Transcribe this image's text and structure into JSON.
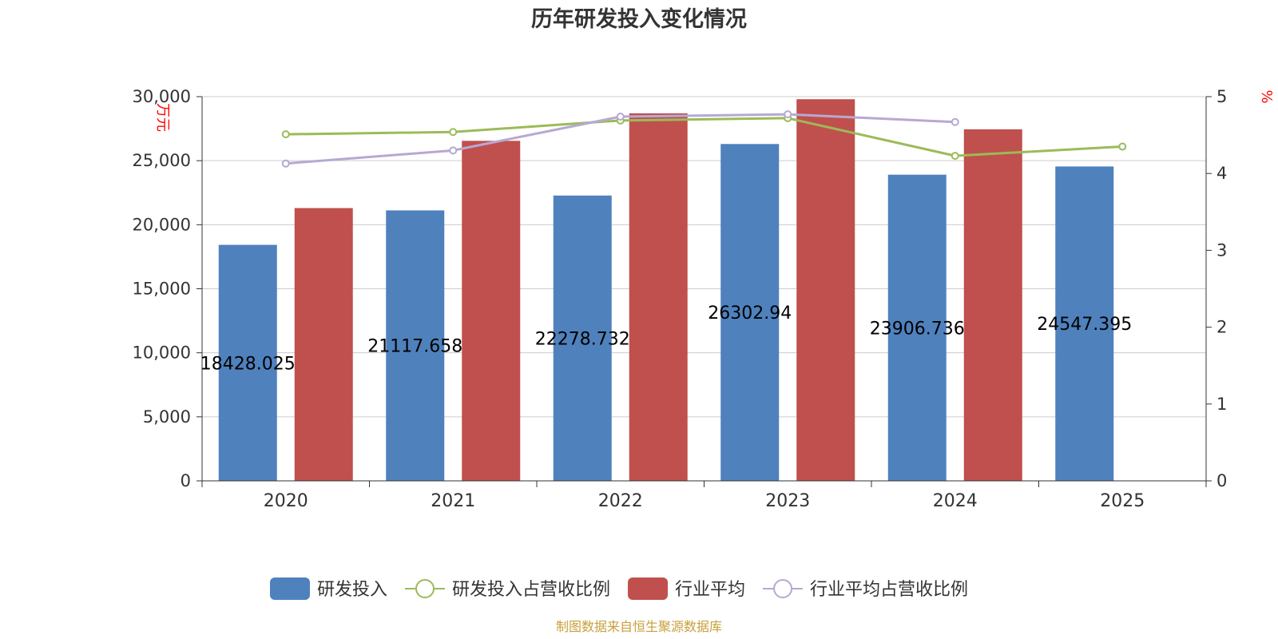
{
  "title": "历年研发投入变化情况",
  "source_note": "制图数据来自恒生聚源数据库",
  "chart_data": {
    "type": "bar",
    "categories": [
      "2020",
      "2021",
      "2022",
      "2023",
      "2024",
      "2025"
    ],
    "y_left": {
      "unit": "万元",
      "ylim": [
        0,
        30000
      ],
      "ticks": [
        "0",
        "5,000",
        "10,000",
        "15,000",
        "20,000",
        "25,000",
        "30,000"
      ]
    },
    "y_right": {
      "unit": "%",
      "ylim": [
        0,
        5
      ],
      "ticks": [
        "0",
        "1",
        "2",
        "3",
        "4",
        "5"
      ]
    },
    "grid": true,
    "legend_position": "bottom",
    "series": [
      {
        "name": "研发投入",
        "type": "bar",
        "axis": "left",
        "color": "#4f81bd",
        "values": [
          18428.025,
          21117.658,
          22278.732,
          26302.94,
          23906.736,
          24547.395
        ],
        "labels": [
          "18428.025",
          "21117.658",
          "22278.732",
          "26302.94",
          "23906.736",
          "24547.395"
        ]
      },
      {
        "name": "研发投入占营收比例",
        "type": "line",
        "axis": "right",
        "color": "#9bbb59",
        "values": [
          4.51,
          4.54,
          4.69,
          4.72,
          4.23,
          4.35
        ]
      },
      {
        "name": "行业平均",
        "type": "bar",
        "axis": "left",
        "color": "#c0504d",
        "values": [
          21300,
          26550,
          28700,
          29800,
          27450,
          null
        ]
      },
      {
        "name": "行业平均占营收比例",
        "type": "line",
        "axis": "right",
        "color": "#b7a8d2",
        "values": [
          4.13,
          4.3,
          4.74,
          4.77,
          4.67,
          null
        ]
      }
    ]
  }
}
